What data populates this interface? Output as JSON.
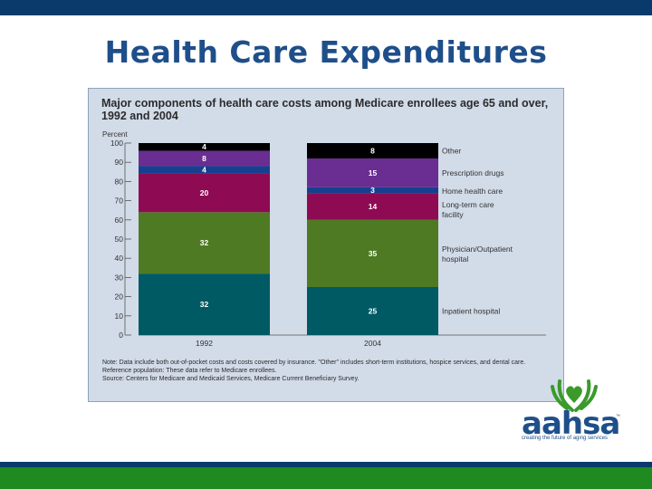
{
  "slide": {
    "title": "Health Care Expenditures",
    "colors": {
      "top_bar": "#0a3a6b",
      "bottom_green": "#1f8a1f",
      "title": "#1f4f8a"
    }
  },
  "chart_data": {
    "type": "bar",
    "stacked": true,
    "title": "Major components of health care costs among Medicare enrollees age 65 and over, 1992 and 2004",
    "ylabel": "Percent",
    "ylim": [
      0,
      100
    ],
    "yticks": [
      0,
      10,
      20,
      30,
      40,
      50,
      60,
      70,
      80,
      90,
      100
    ],
    "categories": [
      "1992",
      "2004"
    ],
    "series": [
      {
        "name": "Inpatient hospital",
        "values": [
          32,
          25
        ],
        "color": "#005a63"
      },
      {
        "name": "Physician/Outpatient hospital",
        "values": [
          32,
          35
        ],
        "color": "#4e7a23"
      },
      {
        "name": "Long-term care facility",
        "values": [
          20,
          14
        ],
        "color": "#8e0b53"
      },
      {
        "name": "Home health care",
        "values": [
          4,
          3
        ],
        "color": "#16408f"
      },
      {
        "name": "Prescription drugs",
        "values": [
          8,
          15
        ],
        "color": "#6a2d92"
      },
      {
        "name": "Other",
        "values": [
          4,
          8
        ],
        "color": "#000000"
      }
    ],
    "legend_placement": "right, aligned with 2004 bar segments",
    "grid": false
  },
  "notes": {
    "note": "Note: Data include both out-of-pocket costs and costs covered by insurance. \"Other\" includes short-term institutions, hospice services, and dental care.",
    "reference": "Reference population: These data refer to Medicare enrollees.",
    "source": "Source: Centers for Medicare and Medicaid Services, Medicare Current Beneficiary Survey."
  },
  "logo": {
    "name": "aahsa",
    "trademark": "™",
    "tagline": "creating the future of aging services",
    "icon": "hands-holding-heart-icon",
    "color": "#1f4f8a",
    "icon_color": "#3a9a2a"
  }
}
